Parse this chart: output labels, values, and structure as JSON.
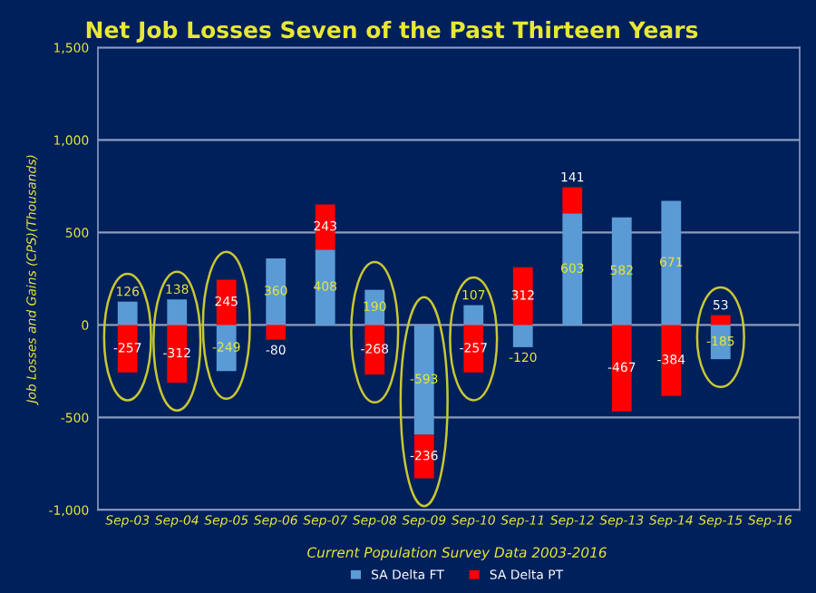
{
  "chart_data": {
    "type": "bar",
    "title": "Net Job Losses Seven of the Past Thirteen Years",
    "xlabel": "Current Population Survey Data 2003-2016",
    "ylabel": "Job Losses and Gains (CPS)(Thousands)",
    "categories": [
      "Sep-03",
      "Sep-04",
      "Sep-05",
      "Sep-06",
      "Sep-07",
      "Sep-08",
      "Sep-09",
      "Sep-10",
      "Sep-11",
      "Sep-12",
      "Sep-13",
      "Sep-14",
      "Sep-15",
      "Sep-16"
    ],
    "series": [
      {
        "name": "SA Delta FT",
        "color": "#5b9bd5",
        "values": [
          126,
          138,
          -249,
          360,
          408,
          190,
          -593,
          107,
          -120,
          603,
          582,
          671,
          -185,
          null
        ]
      },
      {
        "name": "SA Delta PT",
        "color": "#ff0000",
        "values": [
          -257,
          -312,
          245,
          -80,
          243,
          -268,
          -236,
          -257,
          312,
          141,
          -467,
          -384,
          53,
          null
        ]
      }
    ],
    "stacked": true,
    "data_labels": true,
    "ylim": [
      -1000,
      1500
    ],
    "yticks": [
      {
        "value": -1000,
        "label": "-1,000"
      },
      -500,
      0,
      500,
      {
        "value": 1000,
        "label": "1,000"
      },
      {
        "value": 1500,
        "label": "1,500"
      }
    ],
    "grid": "y",
    "legend": "bottom"
  }
}
